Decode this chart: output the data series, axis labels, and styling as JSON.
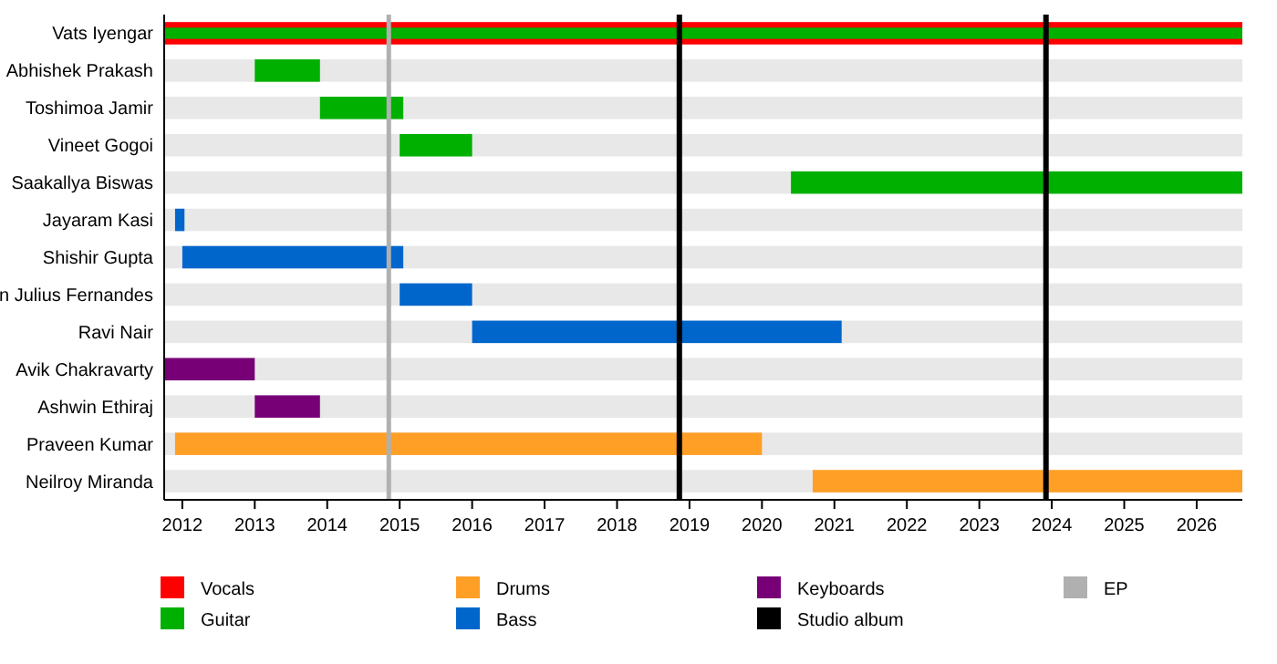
{
  "chart_data": {
    "type": "bar",
    "orientation": "horizontal",
    "categories": [
      "Vats Iyengar",
      "Abhishek Prakash",
      "Toshimoa Jamir",
      "Vineet Gogoi",
      "Saakallya Biswas",
      "Jayaram Kasi",
      "Shishir Gupta",
      "n Julius Fernandes",
      "Ravi Nair",
      "Avik Chakravarty",
      "Ashwin Ethiraj",
      "Praveen Kumar",
      "Neilroy Miranda"
    ],
    "series": [
      {
        "name": "Vocals",
        "color": "#ff0000",
        "base": [
          2011.75,
          null,
          null,
          null,
          null,
          null,
          null,
          null,
          null,
          null,
          null,
          null,
          null
        ],
        "values": [
          14.88,
          null,
          null,
          null,
          null,
          null,
          null,
          null,
          null,
          null,
          null,
          null,
          null
        ]
      },
      {
        "name": "Guitar",
        "color": "#00b000",
        "base": [
          2011.75,
          2013.0,
          2013.9,
          2015.0,
          2020.4,
          null,
          null,
          null,
          null,
          null,
          null,
          null,
          null
        ],
        "values": [
          14.88,
          0.9,
          1.15,
          1.0,
          6.23,
          null,
          null,
          null,
          null,
          null,
          null,
          null,
          null
        ]
      },
      {
        "name": "Drums",
        "color": "#ff9f26",
        "base": [
          null,
          null,
          null,
          null,
          null,
          null,
          null,
          null,
          null,
          null,
          null,
          2011.9,
          2020.7
        ],
        "values": [
          null,
          null,
          null,
          null,
          null,
          null,
          null,
          null,
          null,
          null,
          null,
          8.1,
          5.93
        ]
      },
      {
        "name": "Bass",
        "color": "#0066cc",
        "base": [
          null,
          null,
          null,
          null,
          null,
          2011.9,
          2012.0,
          2015.0,
          2016.0,
          null,
          null,
          null,
          null
        ],
        "values": [
          null,
          null,
          null,
          null,
          null,
          0.13,
          3.05,
          1.0,
          5.1,
          null,
          null,
          null,
          null
        ]
      },
      {
        "name": "Keyboards",
        "color": "#770077",
        "base": [
          null,
          null,
          null,
          null,
          null,
          null,
          null,
          null,
          null,
          2011.75,
          2013.0,
          null,
          null
        ],
        "values": [
          null,
          null,
          null,
          null,
          null,
          null,
          null,
          null,
          null,
          1.25,
          0.9,
          null,
          null
        ]
      }
    ],
    "xlim": [
      2011.75,
      2026.63
    ],
    "xticks": [
      2012,
      2013,
      2014,
      2015,
      2016,
      2017,
      2018,
      2019,
      2020,
      2021,
      2022,
      2023,
      2024,
      2025,
      2026
    ],
    "ref_lines": [
      {
        "axis": "x",
        "value": 2018.86,
        "label": "Studio album",
        "color": "#000000"
      },
      {
        "axis": "x",
        "value": 2023.92,
        "color": "#000000"
      },
      {
        "axis": "x",
        "value": 2014.85,
        "label": "EP",
        "color": "#b0b0b0"
      }
    ],
    "legend": "bottom"
  }
}
